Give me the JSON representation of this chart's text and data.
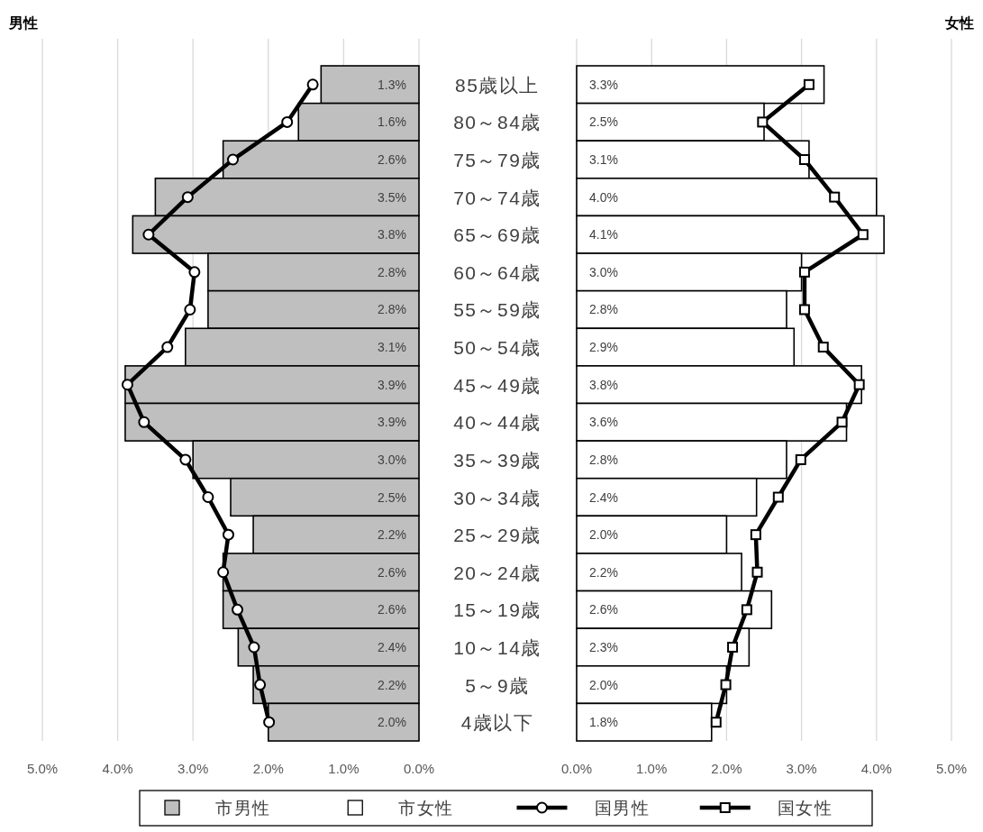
{
  "chart_data": [
    {
      "type": "bar",
      "orientation": "horizontal",
      "title": "男性",
      "categories": [
        "85歳以上",
        "80～84歳",
        "75～79歳",
        "70～74歳",
        "65～69歳",
        "60～64歳",
        "55～59歳",
        "50～54歳",
        "45～49歳",
        "40～44歳",
        "35～39歳",
        "30～34歳",
        "25～29歳",
        "20～24歳",
        "15～19歳",
        "10～14歳",
        "5～9歳",
        "4歳以下"
      ],
      "series": [
        {
          "name": "市男性",
          "type": "bar",
          "color": "#bfbfbf",
          "values": [
            1.3,
            1.6,
            2.6,
            3.5,
            3.8,
            2.8,
            2.8,
            3.1,
            3.9,
            3.9,
            3.0,
            2.5,
            2.2,
            2.6,
            2.6,
            2.4,
            2.2,
            2.0
          ],
          "value_labels": [
            "1.3%",
            "1.6%",
            "2.6%",
            "3.5%",
            "3.8%",
            "2.8%",
            "2.8%",
            "3.1%",
            "3.9%",
            "3.9%",
            "3.0%",
            "2.5%",
            "2.2%",
            "2.6%",
            "2.6%",
            "2.4%",
            "2.2%",
            "2.0%"
          ]
        },
        {
          "name": "国男性",
          "type": "line",
          "color": "#000000",
          "marker": "circle",
          "values": [
            1.41,
            1.75,
            2.47,
            3.07,
            3.59,
            2.98,
            3.04,
            3.34,
            3.87,
            3.65,
            3.1,
            2.8,
            2.53,
            2.6,
            2.41,
            2.19,
            2.11,
            1.99
          ]
        }
      ],
      "xlim": [
        5,
        0
      ],
      "xticks": [
        {
          "value": 5,
          "label": "5.0%"
        },
        {
          "value": 4,
          "label": "4.0%"
        },
        {
          "value": 3,
          "label": "3.0%"
        },
        {
          "value": 2,
          "label": "2.0%"
        },
        {
          "value": 1,
          "label": "1.0%"
        },
        {
          "value": 0,
          "label": "0.0%"
        }
      ],
      "grid": "x",
      "legend": "bottom"
    },
    {
      "type": "bar",
      "orientation": "horizontal",
      "title": "女性",
      "categories": [
        "85歳以上",
        "80～84歳",
        "75～79歳",
        "70～74歳",
        "65～69歳",
        "60～64歳",
        "55～59歳",
        "50～54歳",
        "45～49歳",
        "40～44歳",
        "35～39歳",
        "30～34歳",
        "25～29歳",
        "20～24歳",
        "15～19歳",
        "10～14歳",
        "5～9歳",
        "4歳以下"
      ],
      "series": [
        {
          "name": "市女性",
          "type": "bar",
          "color": "#ffffff",
          "values": [
            3.3,
            2.5,
            3.1,
            4.0,
            4.1,
            3.0,
            2.8,
            2.9,
            3.8,
            3.6,
            2.8,
            2.4,
            2.0,
            2.2,
            2.6,
            2.3,
            2.0,
            1.8
          ],
          "value_labels": [
            "3.3%",
            "2.5%",
            "3.1%",
            "4.0%",
            "4.1%",
            "3.0%",
            "2.8%",
            "2.9%",
            "3.8%",
            "3.6%",
            "2.8%",
            "2.4%",
            "2.0%",
            "2.2%",
            "2.6%",
            "2.3%",
            "2.0%",
            "1.8%"
          ]
        },
        {
          "name": "国女性",
          "type": "line",
          "color": "#000000",
          "marker": "square",
          "values": [
            3.1,
            2.48,
            3.04,
            3.44,
            3.82,
            3.04,
            3.04,
            3.29,
            3.77,
            3.54,
            2.99,
            2.69,
            2.39,
            2.41,
            2.27,
            2.08,
            1.99,
            1.86
          ]
        }
      ],
      "xlim": [
        0,
        5
      ],
      "xticks": [
        {
          "value": 0,
          "label": "0.0%"
        },
        {
          "value": 1,
          "label": "1.0%"
        },
        {
          "value": 2,
          "label": "2.0%"
        },
        {
          "value": 3,
          "label": "3.0%"
        },
        {
          "value": 4,
          "label": "4.0%"
        },
        {
          "value": 5,
          "label": "5.0%"
        }
      ],
      "grid": "x",
      "legend": "bottom",
      "tick_labels": "x"
    }
  ]
}
